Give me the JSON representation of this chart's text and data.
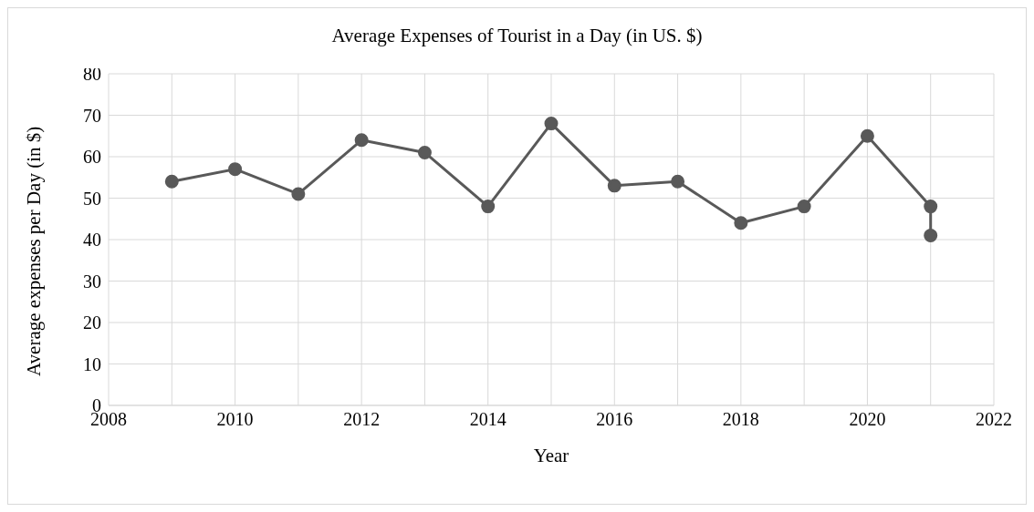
{
  "chart_data": {
    "type": "line",
    "title": "Average Expenses of Tourist in a Day (in US. $)",
    "xlabel": "Year",
    "ylabel": "Average expenses  per Day (in $)",
    "x": [
      2009,
      2010,
      2011,
      2012,
      2013,
      2014,
      2015,
      2016,
      2017,
      2018,
      2019,
      2020,
      2021,
      2021
    ],
    "series": [
      {
        "color": "#595959",
        "values": [
          54,
          57,
          51,
          64,
          61,
          48,
          68,
          53,
          54,
          44,
          48,
          65,
          48,
          41
        ]
      }
    ],
    "xlim": [
      2008,
      2022
    ],
    "xticks": [
      2008,
      {
        "value": 2009,
        "label": null
      },
      2010,
      {
        "value": 2011,
        "label": null
      },
      2012,
      {
        "value": 2013,
        "label": null
      },
      2014,
      {
        "value": 2015,
        "label": null
      },
      2016,
      {
        "value": 2017,
        "label": null
      },
      2018,
      {
        "value": 2019,
        "label": null
      },
      2020,
      {
        "value": 2021,
        "label": null
      },
      2022
    ],
    "ylim": [
      0,
      80
    ],
    "yticks": [
      0,
      10,
      20,
      30,
      40,
      50,
      60,
      70,
      80
    ],
    "grid": true,
    "marker": "circle",
    "line_style": "solid"
  }
}
